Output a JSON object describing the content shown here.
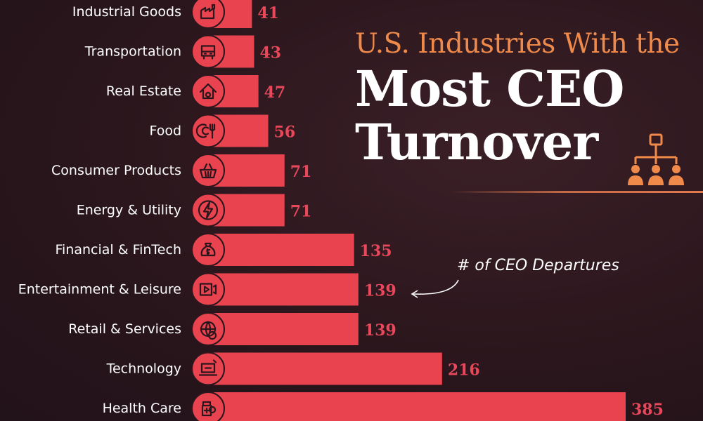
{
  "title": {
    "line1": "U.S. Industries With the",
    "line2": "Most CEO",
    "line3": "Turnover"
  },
  "annotation": "# of CEO Departures",
  "colors": {
    "bar": "#e8434e",
    "value": "#e9475a",
    "accent": "#f08a4b",
    "background": "#2a161c"
  },
  "chart_data": {
    "type": "bar",
    "orientation": "horizontal",
    "title": "U.S. Industries With the Most CEO Turnover",
    "xlabel": "# of CEO Departures",
    "ylabel": "",
    "categories": [
      "Industrial Goods",
      "Transportation",
      "Real Estate",
      "Food",
      "Consumer Products",
      "Energy & Utility",
      "Financial & FinTech",
      "Entertainment & Leisure",
      "Retail & Services",
      "Technology",
      "Health Care"
    ],
    "values": [
      41,
      43,
      47,
      56,
      71,
      71,
      135,
      139,
      139,
      216,
      385
    ],
    "icons": [
      "factory-icon",
      "bus-icon",
      "house-icon",
      "plate-cutlery-icon",
      "basket-icon",
      "lightning-icon",
      "money-bag-icon",
      "video-play-icon",
      "globe-dollar-icon",
      "laptop-icon",
      "medicine-icon"
    ],
    "xlim": [
      0,
      385
    ]
  }
}
